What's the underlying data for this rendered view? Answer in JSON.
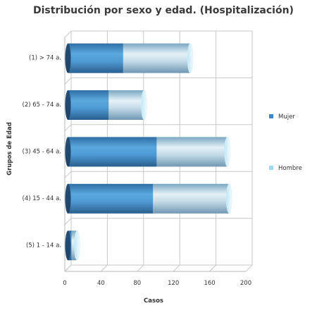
{
  "chart_data": {
    "type": "bar",
    "orientation": "horizontal",
    "stacked": true,
    "style": "3d-cylinder",
    "title": "Distribución por sexo y edad. (Hospitalización)",
    "xlabel": "Casos",
    "ylabel": "Grupos de Edad",
    "xlim": [
      0,
      200
    ],
    "x_ticks": [
      0,
      40,
      80,
      120,
      160,
      200
    ],
    "categories": [
      "(1) > 74 a.",
      "(2) 65 - 74 a.",
      "(3) 45 - 64 a.",
      "(4) 15 - 44 a.",
      "(5) 1 - 14 a."
    ],
    "series": [
      {
        "name": "Mujer",
        "values": [
          61,
          45,
          98,
          94,
          4
        ],
        "color": "#3d87c6"
      },
      {
        "name": "Hombre",
        "values": [
          74,
          39,
          78,
          84,
          6
        ],
        "color": "#9fd8f7"
      }
    ],
    "legend": "right",
    "grid": true
  }
}
